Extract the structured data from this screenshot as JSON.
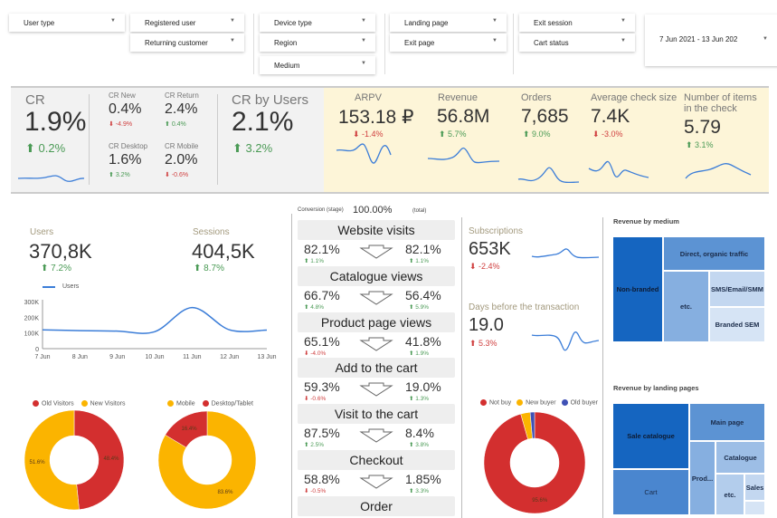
{
  "filters": {
    "user_type": "User type",
    "registered_user": "Registered user",
    "returning_customer": "Returning customer",
    "device_type": "Device type",
    "region": "Region",
    "medium": "Medium",
    "landing_page": "Landing page",
    "exit_page": "Exit page",
    "exit_session": "Exit session",
    "cart_status": "Cart status",
    "date_range": "7 Jun 2021 - 13 Jun 202"
  },
  "kpis": {
    "cr": {
      "label": "CR",
      "value": "1.9%",
      "delta": "0.2%"
    },
    "cr_new": {
      "label": "CR New",
      "value": "0.4%",
      "delta": "-4.9%"
    },
    "cr_return": {
      "label": "CR Return",
      "value": "2.4%",
      "delta": "0.4%"
    },
    "cr_desktop": {
      "label": "CR Desktop",
      "value": "1.6%",
      "delta": "3.2%"
    },
    "cr_mobile": {
      "label": "CR Mobile",
      "value": "2.0%",
      "delta": "-0.6%"
    },
    "cr_users": {
      "label": "CR by Users",
      "value": "2.1%",
      "delta": "3.2%"
    },
    "arpv": {
      "label": "ARPV",
      "value": "153.18 ₽",
      "delta": "-1.4%"
    },
    "revenue": {
      "label": "Revenue",
      "value": "56.8M",
      "delta": "5.7%"
    },
    "orders": {
      "label": "Orders",
      "value": "7,685",
      "delta": "9.0%"
    },
    "avg_check": {
      "label": "Average check size",
      "value": "7.4K",
      "delta": "-3.0%"
    },
    "items": {
      "label": "Number of items in the check",
      "value": "5.79",
      "delta": "3.1%"
    }
  },
  "users": {
    "label": "Users",
    "value": "370,8K",
    "delta": "7.2%"
  },
  "sessions": {
    "label": "Sessions",
    "value": "404,5K",
    "delta": "8.7%"
  },
  "funnel": {
    "header_left": "Conversion (stage)",
    "header_value": "100.00%",
    "header_right": "(total)",
    "stages": [
      "Website visits",
      "Catalogue views",
      "Product page views",
      "Add to the cart",
      "Visit to the cart",
      "Checkout",
      "Order"
    ],
    "rows": [
      {
        "stage": "82.1%",
        "stage_delta": "1.1%",
        "stage_dir": "up",
        "total": "82.1%",
        "total_delta": "1.1%",
        "total_dir": "up"
      },
      {
        "stage": "66.7%",
        "stage_delta": "4.8%",
        "stage_dir": "up",
        "total": "56.4%",
        "total_delta": "5.9%",
        "total_dir": "up"
      },
      {
        "stage": "65.1%",
        "stage_delta": "-4.0%",
        "stage_dir": "down",
        "total": "41.8%",
        "total_delta": "1.9%",
        "total_dir": "up"
      },
      {
        "stage": "59.3%",
        "stage_delta": "-0.6%",
        "stage_dir": "down",
        "total": "19.0%",
        "total_delta": "1.3%",
        "total_dir": "up"
      },
      {
        "stage": "87.5%",
        "stage_delta": "2.5%",
        "stage_dir": "up",
        "total": "8.4%",
        "total_delta": "3.8%",
        "total_dir": "up"
      },
      {
        "stage": "58.8%",
        "stage_delta": "-0.5%",
        "stage_dir": "down",
        "total": "1.85%",
        "total_delta": "3.3%",
        "total_dir": "up"
      }
    ]
  },
  "subscriptions": {
    "label": "Subscriptions",
    "value": "653K",
    "delta": "-2.4%"
  },
  "days_before": {
    "label": "Days before the transaction",
    "value": "19.0",
    "delta": "5.3%"
  },
  "treemap_medium": {
    "title": "Revenue by medium",
    "cells": [
      "Non-branded",
      "Direct, organic traffic",
      "etc.",
      "SMS/Email/SMM",
      "Branded SEM"
    ]
  },
  "treemap_landing": {
    "title": "Revenue by landing pages",
    "cells": [
      "Sale catalogue",
      "Main page",
      "Cart",
      "Prod...",
      "Catalogue",
      "etc.",
      "Sales"
    ]
  },
  "colors": {
    "up": "#4a9a55",
    "down": "#d04040",
    "line": "#3b7dd8",
    "red": "#d32f2f",
    "yellow": "#fbb400",
    "blue": "#3f51b5",
    "kpi_gray": "#f2f2f2",
    "kpi_yellow": "#fdf5d8"
  },
  "chart_data": [
    {
      "type": "line",
      "legend": [
        "Users"
      ],
      "categories": [
        "7 Jun",
        "8 Jun",
        "9 Jun",
        "10 Jun",
        "11 Jun",
        "12 Jun",
        "13 Jun"
      ],
      "series": [
        {
          "name": "Users",
          "values": [
            120000,
            115000,
            112000,
            108000,
            262000,
            120000,
            118000
          ]
        }
      ],
      "yticks": [
        "0",
        "100K",
        "200K",
        "300K"
      ],
      "ylim": [
        0,
        300000
      ]
    },
    {
      "type": "pie",
      "legend": [
        "Old Visitors",
        "New Visitors"
      ],
      "values": [
        48.4,
        51.6
      ],
      "labels": [
        "48.4%",
        "51.6%"
      ],
      "colors": [
        "#d32f2f",
        "#fbb400"
      ]
    },
    {
      "type": "pie",
      "legend": [
        "Mobile",
        "Desktop/Tablet"
      ],
      "values": [
        83.6,
        16.4
      ],
      "labels": [
        "83.6%",
        "16.4%"
      ],
      "colors": [
        "#fbb400",
        "#d32f2f"
      ]
    },
    {
      "type": "pie",
      "legend": [
        "Not buy",
        "New buyer",
        "Old buyer"
      ],
      "values": [
        95.6,
        3.0,
        1.4
      ],
      "labels": [
        "95.6%",
        "",
        ""
      ],
      "colors": [
        "#d32f2f",
        "#fbb400",
        "#3f51b5"
      ]
    }
  ]
}
